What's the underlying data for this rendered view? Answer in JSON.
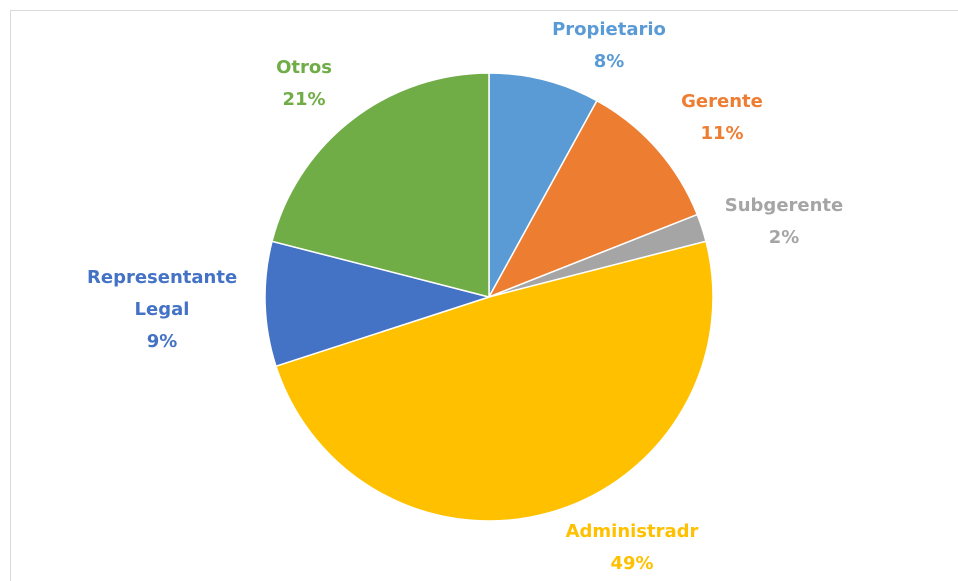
{
  "chart_data": {
    "type": "pie",
    "categories": [
      "Propietario",
      "Gerente",
      "Subgerente",
      "Administradr",
      "Representante Legal",
      "Otros"
    ],
    "values": [
      8,
      11,
      2,
      49,
      9,
      21
    ],
    "value_labels": [
      "8%",
      "11%",
      "2%",
      "49%",
      "9%",
      "21%"
    ],
    "colors": [
      "#5b9bd5",
      "#ed7d31",
      "#a5a5a5",
      "#ffc000",
      "#4472c4",
      "#70ad47"
    ]
  }
}
